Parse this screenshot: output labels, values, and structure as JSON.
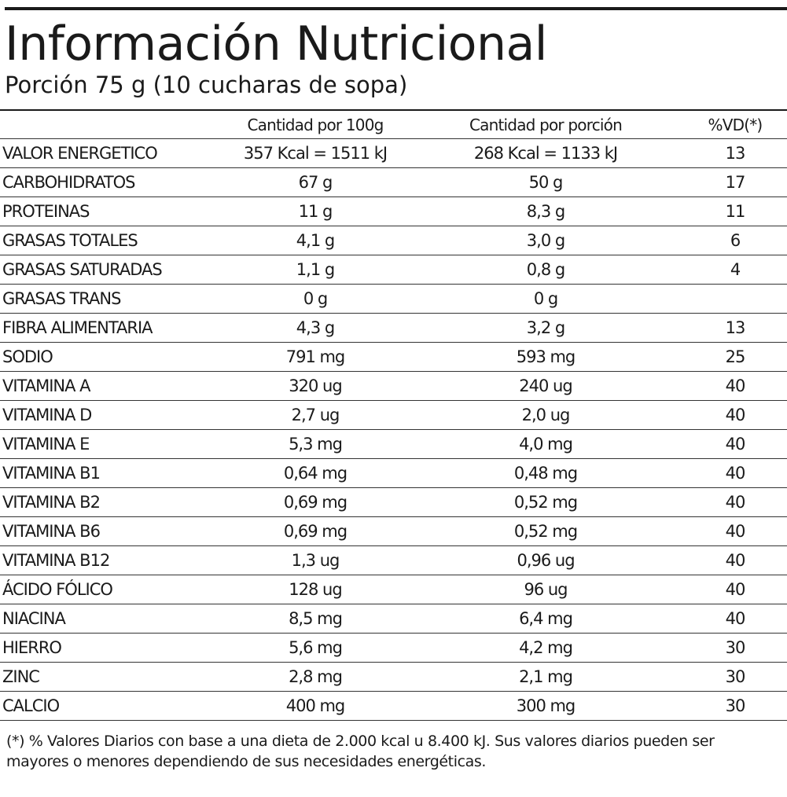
{
  "title": "Información Nutricional",
  "subtitle": "Porción 75 g (10 cucharas de sopa)",
  "columns": [
    "Cantidad por 100g",
    "Cantidad por porción",
    "%VD(*)"
  ],
  "rows": [
    {
      "name": "VALOR ENERGETICO",
      "per100": "357 Kcal = 1511 kJ",
      "perPortion": "268 Kcal = 1133 kJ",
      "vd": "13"
    },
    {
      "name": "CARBOHIDRATOS",
      "per100": "67 g",
      "perPortion": "50 g",
      "vd": "17"
    },
    {
      "name": "PROTEINAS",
      "per100": "11 g",
      "perPortion": "8,3 g",
      "vd": "11"
    },
    {
      "name": "GRASAS TOTALES",
      "per100": "4,1 g",
      "perPortion": "3,0 g",
      "vd": "6"
    },
    {
      "name": "GRASAS SATURADAS",
      "per100": "1,1 g",
      "perPortion": "0,8 g",
      "vd": "4"
    },
    {
      "name": "GRASAS TRANS",
      "per100": "0 g",
      "perPortion": "0 g",
      "vd": ""
    },
    {
      "name": "FIBRA ALIMENTARIA",
      "per100": "4,3 g",
      "perPortion": "3,2 g",
      "vd": "13"
    },
    {
      "name": "SODIO",
      "per100": "791 mg",
      "perPortion": "593 mg",
      "vd": "25"
    },
    {
      "name": "VITAMINA A",
      "per100": "320 ug",
      "perPortion": "240 ug",
      "vd": "40"
    },
    {
      "name": "VITAMINA D",
      "per100": "2,7 ug",
      "perPortion": "2,0 ug",
      "vd": "40"
    },
    {
      "name": "VITAMINA E",
      "per100": "5,3 mg",
      "perPortion": "4,0 mg",
      "vd": "40"
    },
    {
      "name": "VITAMINA B1",
      "per100": "0,64 mg",
      "perPortion": "0,48 mg",
      "vd": "40"
    },
    {
      "name": "VITAMINA B2",
      "per100": "0,69 mg",
      "perPortion": "0,52 mg",
      "vd": "40"
    },
    {
      "name": "VITAMINA B6",
      "per100": "0,69 mg",
      "perPortion": "0,52 mg",
      "vd": "40"
    },
    {
      "name": "VITAMINA B12",
      "per100": "1,3 ug",
      "perPortion": "0,96 ug",
      "vd": "40"
    },
    {
      "name": "ÁCIDO FÓLICO",
      "per100": "128 ug",
      "perPortion": "96 ug",
      "vd": "40"
    },
    {
      "name": "NIACINA",
      "per100": "8,5 mg",
      "perPortion": "6,4  mg",
      "vd": "40"
    },
    {
      "name": "HIERRO",
      "per100": "5,6 mg",
      "perPortion": "4,2 mg",
      "vd": "30"
    },
    {
      "name": "ZINC",
      "per100": "2,8 mg",
      "perPortion": "2,1 mg",
      "vd": "30"
    },
    {
      "name": "CALCIO",
      "per100": "400 mg",
      "perPortion": "300 mg",
      "vd": "30"
    }
  ],
  "footnote": "(*) % Valores Diarios con base a una dieta de 2.000 kcal u 8.400 kJ. Sus valores diarios pueden ser mayores o menores dependiendo de sus necesidades energéticas."
}
